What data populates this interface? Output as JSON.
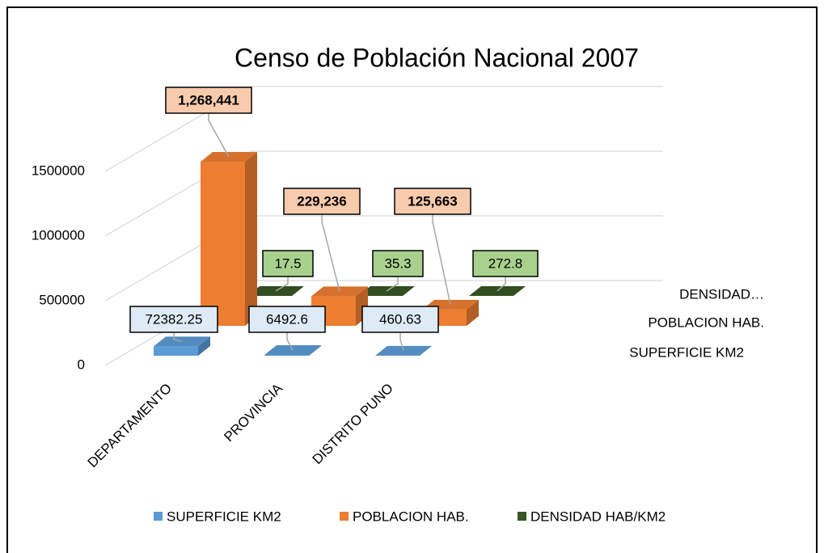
{
  "chart_data": {
    "type": "bar",
    "title": "Censo de Población Nacional 2007",
    "categories": [
      "DEPARTAMENTO",
      "PROVINCIA",
      "DISTRITO PUNO"
    ],
    "series": [
      {
        "name": "SUPERFICIE KM2",
        "color": "#5b9bd5",
        "values": [
          72382.25,
          6492.6,
          460.63
        ]
      },
      {
        "name": "POBLACION HAB.",
        "color": "#ed7d31",
        "values": [
          1268441,
          229236,
          125663
        ],
        "value_labels": [
          "1,268,441",
          "229,236",
          "125,663"
        ]
      },
      {
        "name": "DENSIDAD HAB/KM2",
        "color": "#375623",
        "values": [
          17.5,
          35.3,
          272.8
        ]
      }
    ],
    "depth_labels": [
      "SUPERFICIE KM2",
      "POBLACION HAB.",
      "DENSIDAD…"
    ],
    "ylim": [
      0,
      1500000
    ],
    "yticks": [
      0,
      500000,
      1000000,
      1500000
    ],
    "grid": true,
    "legend": "bottom"
  }
}
